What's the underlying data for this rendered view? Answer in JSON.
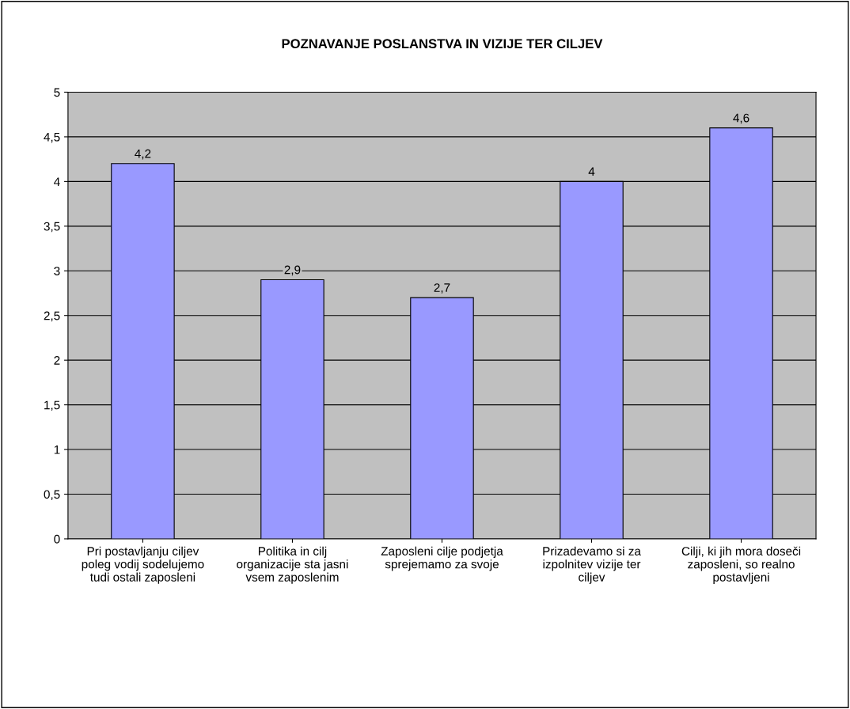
{
  "chart_data": {
    "type": "bar",
    "title": "POZNAVANJE POSLANSTVA IN VIZIJE TER CILJEV",
    "categories": [
      "Pri postavljanju ciljev\npoleg vodij sodelujemo\ntudi ostali zaposleni",
      "Politika in cilj\norganizacije sta jasni\nvsem zaposlenim",
      "Zaposleni cilje podjetja\nsprejemamo za svoje",
      "Prizadevamo si za\nizpolnitev vizije ter\nciljev",
      "Cilji, ki jih mora doseči\nzaposleni, so realno\npostavljeni"
    ],
    "values": [
      4.2,
      2.9,
      2.7,
      4,
      4.6
    ],
    "value_labels": [
      "4,2",
      "2,9",
      "2,7",
      "4",
      "4,6"
    ],
    "color": "#9999ff",
    "ylim": [
      0,
      5
    ],
    "yticks": [
      0,
      {
        "value": 0.5,
        "label": "0,5"
      },
      1,
      {
        "value": 1.5,
        "label": "1,5"
      },
      2,
      {
        "value": 2.5,
        "label": "2,5"
      },
      3,
      {
        "value": 3.5,
        "label": "3,5"
      },
      4,
      {
        "value": 4.5,
        "label": "4,5"
      },
      5
    ],
    "grid": "y"
  }
}
